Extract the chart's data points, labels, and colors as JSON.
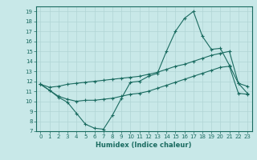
{
  "xlabel": "Humidex (Indice chaleur)",
  "background_color": "#c8e8e8",
  "grid_color": "#b0d4d4",
  "line_color": "#1a6b60",
  "xlim": [
    -0.5,
    23.5
  ],
  "ylim": [
    7,
    19.5
  ],
  "xticks": [
    0,
    1,
    2,
    3,
    4,
    5,
    6,
    7,
    8,
    9,
    10,
    11,
    12,
    13,
    14,
    15,
    16,
    17,
    18,
    19,
    20,
    21,
    22,
    23
  ],
  "yticks": [
    7,
    8,
    9,
    10,
    11,
    12,
    13,
    14,
    15,
    16,
    17,
    18,
    19
  ],
  "line1_x": [
    0,
    1,
    2,
    3,
    4,
    5,
    6,
    7,
    8,
    9,
    10,
    11,
    12,
    13,
    14,
    15,
    16,
    17,
    18,
    19,
    20,
    21,
    22,
    23
  ],
  "line1_y": [
    11.7,
    11.1,
    10.4,
    9.9,
    8.8,
    7.7,
    7.3,
    7.2,
    8.6,
    10.3,
    11.9,
    12.0,
    12.5,
    12.8,
    15.0,
    17.0,
    18.3,
    19.0,
    16.5,
    15.2,
    15.3,
    13.6,
    11.8,
    10.8
  ],
  "line2_x": [
    0,
    1,
    2,
    3,
    4,
    5,
    6,
    7,
    8,
    9,
    10,
    11,
    12,
    13,
    14,
    15,
    16,
    17,
    18,
    19,
    20,
    21,
    22,
    23
  ],
  "line2_y": [
    11.7,
    11.1,
    10.5,
    10.2,
    10.0,
    10.1,
    10.1,
    10.2,
    10.3,
    10.5,
    10.7,
    10.8,
    11.0,
    11.3,
    11.6,
    11.9,
    12.2,
    12.5,
    12.8,
    13.1,
    13.4,
    13.5,
    10.8,
    10.7
  ],
  "line3_x": [
    0,
    1,
    2,
    3,
    4,
    5,
    6,
    7,
    8,
    9,
    10,
    11,
    12,
    13,
    14,
    15,
    16,
    17,
    18,
    19,
    20,
    21,
    22,
    23
  ],
  "line3_y": [
    11.7,
    11.4,
    11.5,
    11.7,
    11.8,
    11.9,
    12.0,
    12.1,
    12.2,
    12.3,
    12.4,
    12.5,
    12.7,
    12.9,
    13.2,
    13.5,
    13.7,
    14.0,
    14.3,
    14.6,
    14.8,
    15.0,
    11.8,
    11.5
  ],
  "tick_fontsize": 5,
  "xlabel_fontsize": 6
}
